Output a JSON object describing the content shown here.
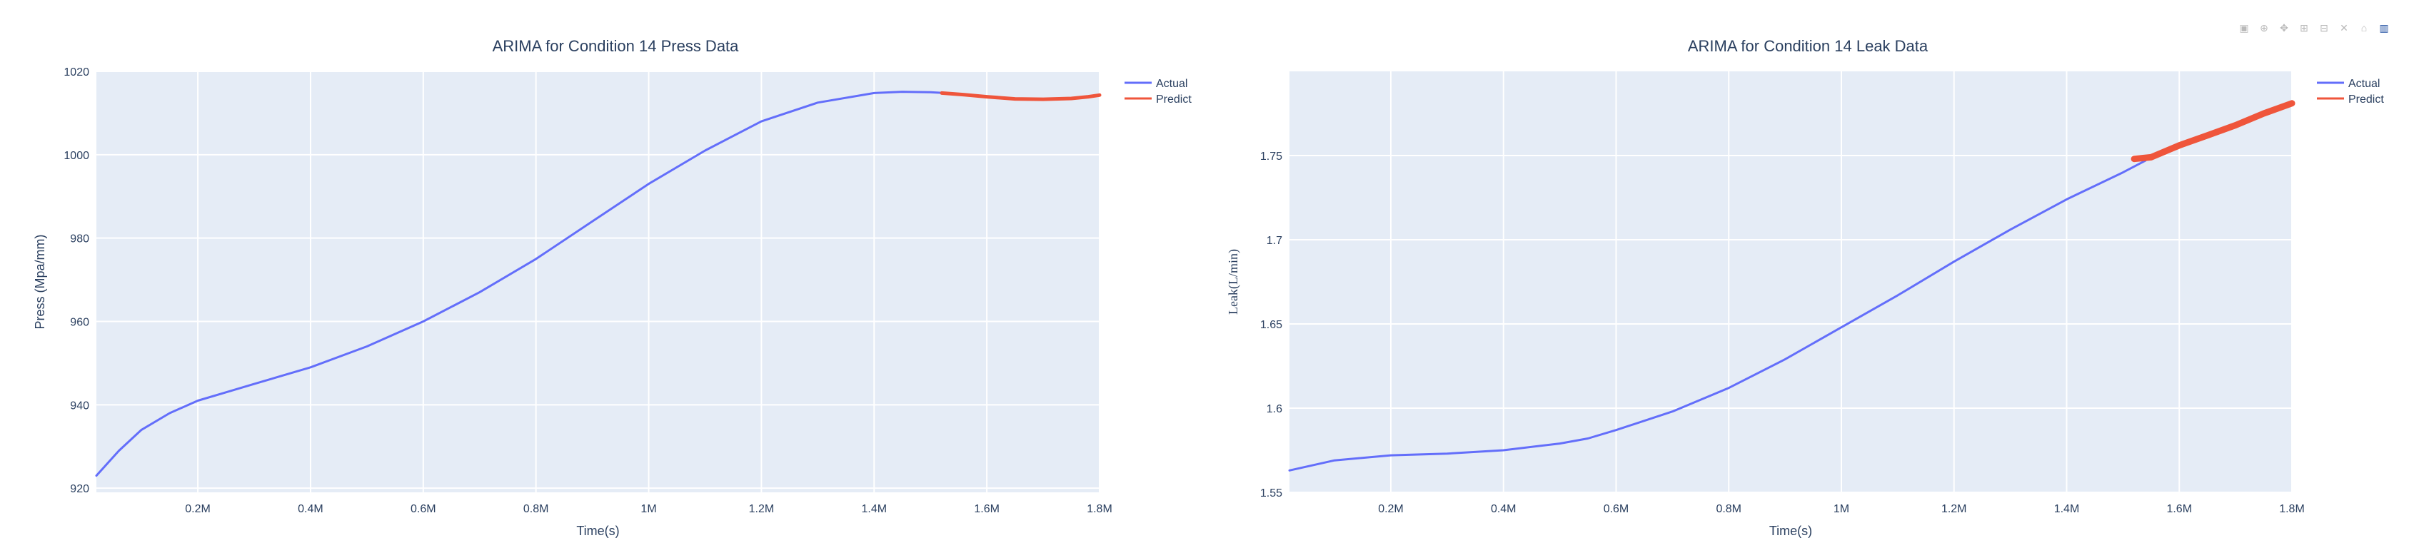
{
  "modebar": {
    "icons": [
      "camera-icon",
      "zoom-icon",
      "pan-icon",
      "zoom-in-icon",
      "zoom-out-icon",
      "autoscale-icon",
      "home-icon",
      "plotly-logo-icon"
    ],
    "glyphs": [
      "▣",
      "⊕",
      "✥",
      "⊞",
      "⊟",
      "✕",
      "⌂",
      "▥"
    ]
  },
  "chart_data": [
    {
      "type": "line",
      "title": "ARIMA for Condition 14 Press Data",
      "xlabel": "Time(s)",
      "ylabel": "Press (Mpa/mm)",
      "xlim": [
        20000,
        1800000
      ],
      "ylim": [
        919,
        1020
      ],
      "xticks": [
        200000,
        400000,
        600000,
        800000,
        1000000,
        1200000,
        1400000,
        1600000,
        1800000
      ],
      "xtick_labels": [
        "0.2M",
        "0.4M",
        "0.6M",
        "0.8M",
        "1M",
        "1.2M",
        "1.4M",
        "1.6M",
        "1.8M"
      ],
      "yticks": [
        920,
        940,
        960,
        980,
        1000,
        1020
      ],
      "ytick_labels": [
        "920",
        "940",
        "960",
        "980",
        "1000",
        "1020"
      ],
      "grid": true,
      "legend_position": "top-right",
      "series": [
        {
          "name": "Actual",
          "color": "#636efa",
          "x": [
            20000,
            60000,
            100000,
            150000,
            200000,
            250000,
            300000,
            400000,
            500000,
            600000,
            700000,
            800000,
            900000,
            1000000,
            1100000,
            1200000,
            1300000,
            1400000,
            1450000,
            1500000,
            1550000
          ],
          "y": [
            923,
            929,
            934,
            938,
            941,
            943,
            945,
            949,
            954,
            960,
            967,
            975,
            984,
            993,
            1001,
            1008,
            1012.5,
            1014.8,
            1015.1,
            1015,
            1014.6
          ]
        },
        {
          "name": "Predict",
          "color": "#ef553b",
          "x": [
            1520000,
            1560000,
            1600000,
            1650000,
            1700000,
            1750000,
            1780000,
            1800000
          ],
          "y": [
            1014.8,
            1014.4,
            1013.9,
            1013.4,
            1013.3,
            1013.5,
            1013.9,
            1014.3
          ]
        }
      ]
    },
    {
      "type": "line",
      "title": "ARIMA for Condition 14 Leak Data",
      "xlabel": "Time(s)",
      "ylabel": "Leak(L/min)",
      "xlim": [
        20000,
        1800000
      ],
      "ylim": [
        1.55,
        1.8
      ],
      "xticks": [
        200000,
        400000,
        600000,
        800000,
        1000000,
        1200000,
        1400000,
        1600000,
        1800000
      ],
      "xtick_labels": [
        "0.2M",
        "0.4M",
        "0.6M",
        "0.8M",
        "1M",
        "1.2M",
        "1.4M",
        "1.6M",
        "1.8M"
      ],
      "yticks": [
        1.55,
        1.6,
        1.65,
        1.7,
        1.75
      ],
      "ytick_labels": [
        "1.55",
        "1.6",
        "1.65",
        "1.7",
        "1.75"
      ],
      "grid": true,
      "legend_position": "top-right",
      "series": [
        {
          "name": "Actual",
          "color": "#636efa",
          "x": [
            20000,
            100000,
            200000,
            300000,
            400000,
            500000,
            550000,
            600000,
            700000,
            800000,
            900000,
            1000000,
            1100000,
            1200000,
            1300000,
            1400000,
            1500000,
            1540000
          ],
          "y": [
            1.563,
            1.569,
            1.572,
            1.573,
            1.575,
            1.579,
            1.582,
            1.587,
            1.598,
            1.612,
            1.629,
            1.648,
            1.667,
            1.687,
            1.706,
            1.724,
            1.74,
            1.747
          ]
        },
        {
          "name": "Predict",
          "color": "#ef553b",
          "x": [
            1520000,
            1550000,
            1600000,
            1650000,
            1700000,
            1750000,
            1800000
          ],
          "y": [
            1.748,
            1.749,
            1.756,
            1.762,
            1.768,
            1.775,
            1.781
          ]
        }
      ]
    }
  ]
}
